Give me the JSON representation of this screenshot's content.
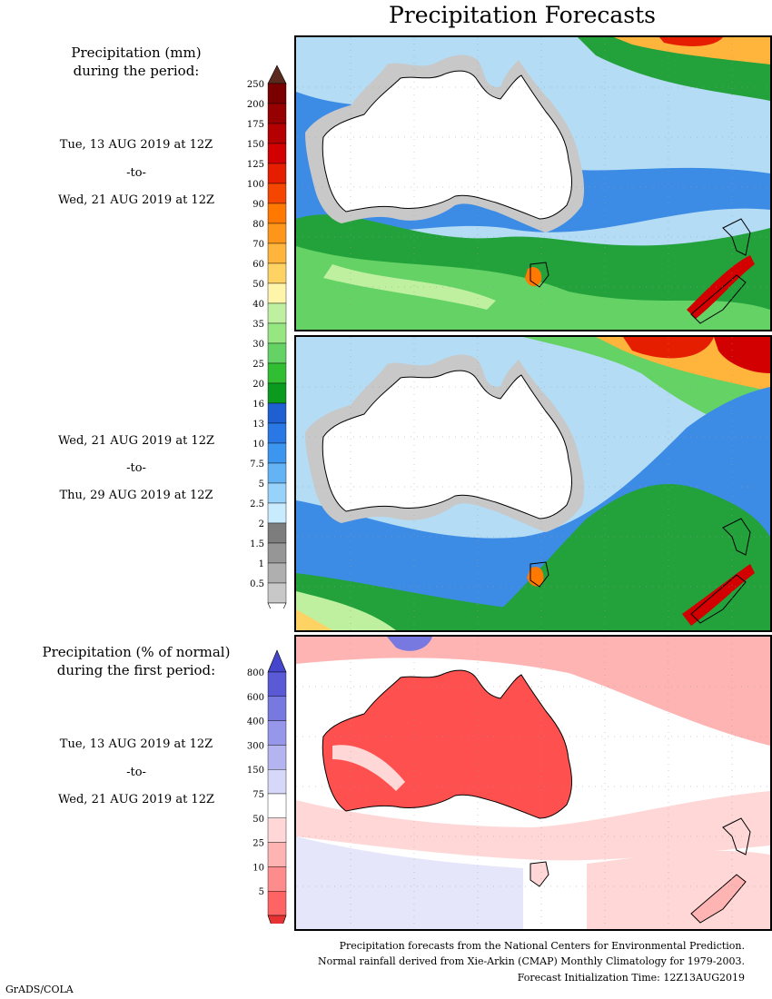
{
  "title": "Precipitation Forecasts",
  "panel1": {
    "heading_line1": "Precipitation (mm)",
    "heading_line2": "during the period:",
    "start": "Tue, 13 AUG 2019 at 12Z",
    "sep": "-to-",
    "end": "Wed, 21 AUG 2019 at 12Z"
  },
  "panel2": {
    "start": "Wed, 21 AUG 2019 at 12Z",
    "sep": "-to-",
    "end": "Thu, 29 AUG 2019 at 12Z"
  },
  "panel3": {
    "heading_line1": "Precipitation (% of normal)",
    "heading_line2": "during the first period:",
    "start": "Tue, 13 AUG 2019 at 12Z",
    "sep": "-to-",
    "end": "Wed, 21 AUG 2019 at 12Z"
  },
  "mm_scale": {
    "ticks": [
      "250",
      "200",
      "175",
      "150",
      "125",
      "100",
      "90",
      "80",
      "70",
      "60",
      "50",
      "40",
      "35",
      "30",
      "25",
      "20",
      "16",
      "13",
      "10",
      "7.5",
      "5",
      "2.5",
      "2",
      "1.5",
      "1",
      "0.5"
    ],
    "colors": [
      "#7a0000",
      "#960000",
      "#b40000",
      "#d20000",
      "#e61e00",
      "#f54600",
      "#ff7800",
      "#ff9619",
      "#ffb43c",
      "#ffd264",
      "#fff5aa",
      "#bef0a0",
      "#96e682",
      "#64d264",
      "#32be32",
      "#0a9b1e",
      "#1e5fd2",
      "#2a78e6",
      "#3c96f0",
      "#64b4f5",
      "#96d2fa",
      "#c8ebfd",
      "#7d7d7d",
      "#969696",
      "#afafaf",
      "#c8c8c8"
    ],
    "top_cap_color": "#5a2a1e"
  },
  "pct_scale": {
    "ticks": [
      "800",
      "600",
      "400",
      "300",
      "150",
      "75",
      "50",
      "25",
      "10",
      "5"
    ],
    "colors": [
      "#5a5ad7",
      "#7878e1",
      "#9696eb",
      "#b4b4f0",
      "#d7d7fa",
      "#ffffff",
      "#ffd7d7",
      "#ffb4b4",
      "#ff8c8c",
      "#ff6464"
    ],
    "top_cap_color": "#4646cd",
    "bottom_cap_color": "#e63232"
  },
  "footnotes": [
    "Precipitation forecasts from the National Centers for Environmental Prediction.",
    "Normal rainfall derived from Xie-Arkin (CMAP) Monthly Climatology for 1979-2003.",
    "Forecast Initialization Time: 12Z13AUG2019"
  ],
  "credit": "GrADS/COLA"
}
